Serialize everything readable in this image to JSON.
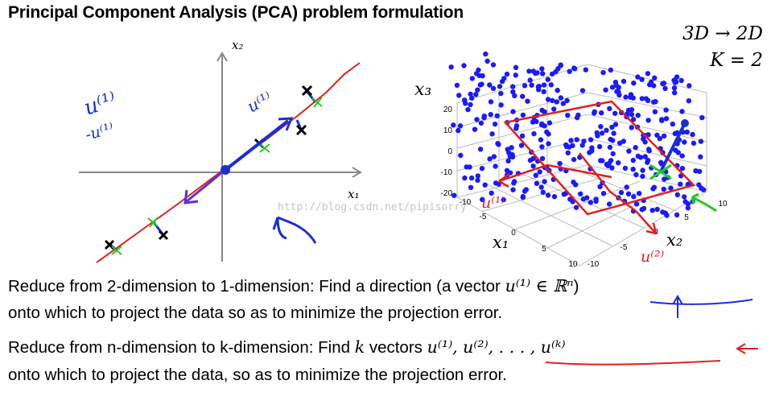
{
  "title": "Principal Component Analysis (PCA) problem formulation",
  "corner": {
    "dims": "3D → 2D",
    "k": "K = 2"
  },
  "plot2d": {
    "xlabel": "x₁",
    "ylabel": "x₂",
    "annot_u": "u⁽¹⁾",
    "annot_neg_u": "-u⁽¹⁾",
    "annot_u_line": "u⁽¹⁾"
  },
  "plot3d": {
    "xlabel": "x₁",
    "ylabel": "x₂",
    "zlabel": "x₃",
    "z_ticks": [
      "20",
      "10",
      "0",
      "-10",
      "-20"
    ],
    "x_ticks": [
      "-10",
      "-5",
      "0",
      "5",
      "10"
    ],
    "y_ticks": [
      "-10",
      "-5",
      "0",
      "5",
      "10"
    ],
    "annot_u1": "u⁽¹⁾",
    "annot_u2": "u⁽²⁾"
  },
  "watermark": "http://blog.csdn.net/pipisorry",
  "text": {
    "line1_a": "Reduce from 2-dimension to 1-dimension: Find a direction (a vector ",
    "line1_math": "u⁽¹⁾ ∈ ℝⁿ",
    "line1_b": ")",
    "line2": "onto which to project the data so as to minimize the projection error.",
    "line3_a": "Reduce from n-dimension to k-dimension: Find ",
    "line3_k": "k",
    "line3_b": " vectors ",
    "line3_math": "u⁽¹⁾, u⁽²⁾, . . . , u⁽ᵏ⁾",
    "line4": "onto which to project the data, so as to minimize the projection error."
  },
  "colors": {
    "red": "#e0201e",
    "blue": "#1a2fd0",
    "green": "#22cc22",
    "dot": "#1a1aff"
  }
}
